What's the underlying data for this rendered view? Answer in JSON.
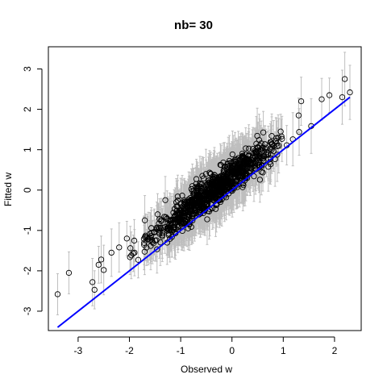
{
  "chart_data": {
    "type": "scatter",
    "title": "nb= 30",
    "xlabel": "Observed w",
    "ylabel": "Fitted w",
    "xlim": [
      -3.58,
      2.52
    ],
    "ylim": [
      -3.48,
      3.55
    ],
    "xticks": [
      -3,
      -2,
      -1,
      0,
      1,
      2
    ],
    "yticks": [
      -3,
      -2,
      -1,
      0,
      1,
      2,
      3
    ],
    "grid": false,
    "legend": "none",
    "n_points_approx": 1000,
    "error_bar_halfwidth_approx": 0.55,
    "points_sample": [
      {
        "x": -3.4,
        "y": -2.58
      },
      {
        "x": -3.18,
        "y": -2.05
      },
      {
        "x": -2.72,
        "y": -2.28
      },
      {
        "x": -2.68,
        "y": -2.47
      },
      {
        "x": -2.6,
        "y": -1.85
      },
      {
        "x": -2.55,
        "y": -1.72
      },
      {
        "x": -2.5,
        "y": -1.98
      },
      {
        "x": -2.35,
        "y": -1.55
      },
      {
        "x": -2.2,
        "y": -1.42
      },
      {
        "x": -2.05,
        "y": -1.2
      },
      {
        "x": -1.9,
        "y": -1.55
      },
      {
        "x": -1.7,
        "y": -0.75
      },
      {
        "x": -1.45,
        "y": -0.6
      },
      {
        "x": -1.3,
        "y": -0.25
      },
      {
        "x": -1.0,
        "y": -0.35
      },
      {
        "x": -0.7,
        "y": 0.15
      },
      {
        "x": -0.4,
        "y": 0.2
      },
      {
        "x": 0.0,
        "y": 0.45
      },
      {
        "x": 0.3,
        "y": 0.6
      },
      {
        "x": 0.6,
        "y": 1.05
      },
      {
        "x": 0.95,
        "y": 1.45
      },
      {
        "x": 1.3,
        "y": 1.85
      },
      {
        "x": 1.35,
        "y": 2.2
      },
      {
        "x": 1.75,
        "y": 2.25
      },
      {
        "x": 1.9,
        "y": 2.35
      },
      {
        "x": 2.15,
        "y": 2.3
      },
      {
        "x": 2.2,
        "y": 2.75
      },
      {
        "x": 2.3,
        "y": 2.42
      }
    ],
    "reference_line": {
      "x": [
        -3.4,
        2.3
      ],
      "y": [
        -3.4,
        2.3
      ]
    },
    "colors": {
      "points": "#000000",
      "error_bars": "#bebebe",
      "reference_line": "#0000ff"
    }
  }
}
